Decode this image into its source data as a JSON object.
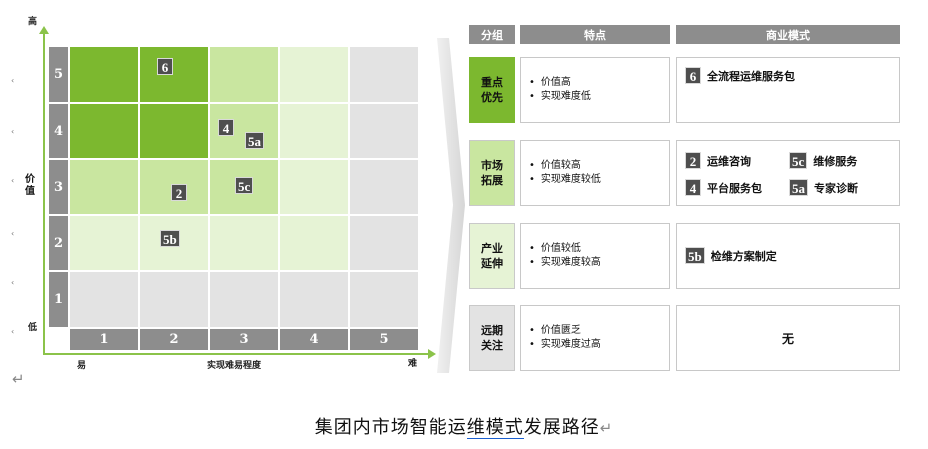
{
  "matrix": {
    "y_top": "高",
    "y_bottom": "低",
    "y_axis_label": "价值",
    "x_left": "易",
    "x_right": "难",
    "x_axis_label": "实现难易程度",
    "row_labels": [
      "5",
      "4",
      "3",
      "2",
      "1"
    ],
    "col_labels": [
      "1",
      "2",
      "3",
      "4",
      "5"
    ],
    "badges": {
      "b6": "6",
      "b4": "4",
      "b5a": "5a",
      "b2": "2",
      "b5c": "5c",
      "b5b": "5b"
    },
    "colors": {
      "dark": "#7cb82f",
      "mid": "#c9e6a0",
      "light": "#e6f3d5",
      "gray": "#e3e3e3"
    }
  },
  "table": {
    "headers": {
      "group": "分组",
      "feature": "特点",
      "model": "商业模式"
    },
    "rows": [
      {
        "group": "重点\n优先",
        "features": [
          "价值高",
          "实现难度低"
        ],
        "models": [
          {
            "badge": "6",
            "label": "全流程运维服务包"
          }
        ]
      },
      {
        "group": "市场\n拓展",
        "features": [
          "价值较高",
          "实现难度较低"
        ],
        "models": [
          {
            "badge": "2",
            "label": "运维咨询"
          },
          {
            "badge": "5c",
            "label": "维修服务"
          },
          {
            "badge": "4",
            "label": "平台服务包"
          },
          {
            "badge": "5a",
            "label": "专家诊断"
          }
        ]
      },
      {
        "group": "产业\n延伸",
        "features": [
          "价值较低",
          "实现难度较高"
        ],
        "models": [
          {
            "badge": "5b",
            "label": "检维方案制定"
          }
        ]
      },
      {
        "group": "远期\n关注",
        "features": [
          "价值匮乏",
          "实现难度过高"
        ],
        "model_text": "无"
      }
    ]
  },
  "caption": {
    "pre": "集团内市场智能运",
    "underlined": "维模式",
    "post": "发展路径"
  }
}
